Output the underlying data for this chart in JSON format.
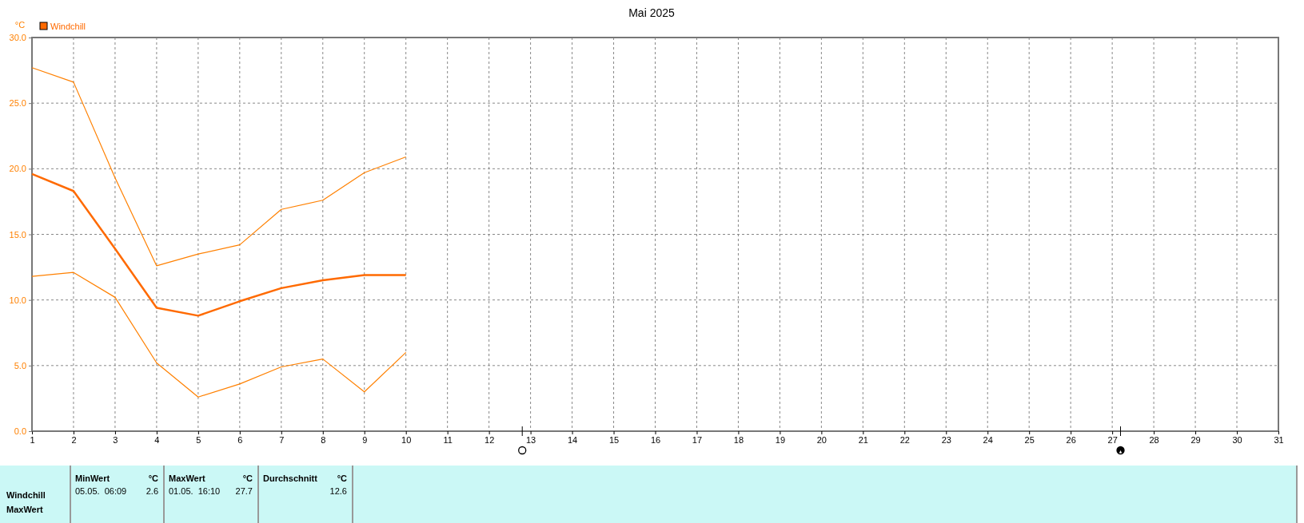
{
  "chart_data": {
    "type": "line",
    "title": "Mai 2025",
    "ylabel": "°C",
    "x": [
      1,
      2,
      3,
      4,
      5,
      6,
      7,
      8,
      9,
      10
    ],
    "series": [
      {
        "color": "#ff8000",
        "values": [
          27.7,
          26.6,
          19.3,
          12.6,
          13.5,
          14.2,
          16.9,
          17.6,
          19.7,
          20.9
        ]
      },
      {
        "name": "Windchill",
        "color": "#ff6a00",
        "values": [
          19.6,
          18.3,
          13.9,
          9.4,
          8.8,
          9.9,
          10.9,
          11.5,
          11.9,
          11.9
        ]
      },
      {
        "color": "#ff8000",
        "values": [
          11.8,
          12.1,
          10.2,
          5.2,
          2.6,
          3.6,
          4.9,
          5.5,
          3.0,
          6.0
        ]
      }
    ],
    "xlim": [
      1,
      31
    ],
    "xticks": [
      1,
      2,
      3,
      4,
      5,
      6,
      7,
      8,
      9,
      10,
      11,
      12,
      13,
      14,
      15,
      16,
      17,
      18,
      19,
      20,
      21,
      22,
      23,
      24,
      25,
      26,
      27,
      28,
      29,
      30,
      31
    ],
    "ylim": [
      0,
      30
    ],
    "yticks": [
      {
        "value": 0,
        "label": "0.0"
      },
      {
        "value": 5,
        "label": "5.0"
      },
      {
        "value": 10,
        "label": "10.0"
      },
      {
        "value": 15,
        "label": "15.0"
      },
      {
        "value": 20,
        "label": "20.0"
      },
      {
        "value": 25,
        "label": "25.0"
      },
      {
        "value": 30,
        "label": "30.0"
      }
    ],
    "grid": true,
    "legend": "top left",
    "marker": "none",
    "line_style": "solid",
    "annotations": [
      "Windchill",
      "MaxWert",
      "MinWert",
      "°C",
      "05.05.  06:09",
      "2.6",
      "MaxWert",
      "°C",
      "01.05.  16:10",
      "27.7",
      "Durchschnitt",
      "°C",
      "12.6"
    ]
  }
}
